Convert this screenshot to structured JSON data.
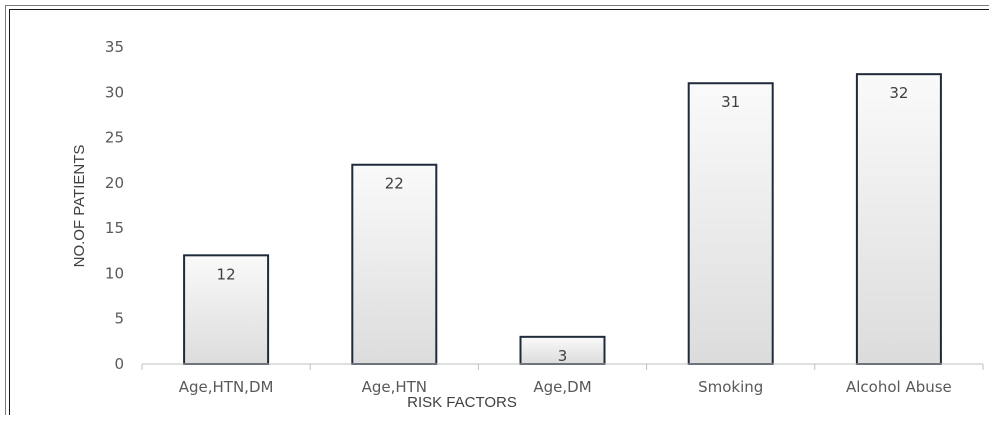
{
  "chart_data": {
    "type": "bar",
    "title": "",
    "xlabel": "RISK FACTORS",
    "ylabel": "NO.OF PATIENTS",
    "categories": [
      "Age,HTN,DM",
      "Age,HTN",
      "Age,DM",
      "Smoking",
      "Alcohol Abuse"
    ],
    "values": [
      12,
      22,
      3,
      31,
      32
    ],
    "data_labels": [
      "12",
      "22",
      "3",
      "31",
      "32"
    ],
    "ylim": [
      0,
      35
    ],
    "yticks": [
      0,
      5,
      10,
      15,
      20,
      25,
      30,
      35
    ],
    "ytick_labels": [
      "0",
      "5",
      "10",
      "15",
      "20",
      "25",
      "30",
      "35"
    ],
    "grid": false,
    "legend": "none",
    "colors": {
      "bar_fill_top": "#fafafa",
      "bar_fill_bottom": "#dcdcdc",
      "bar_stroke": "#1f2a3a",
      "axis": "#bfbfbf",
      "text": "#595959"
    }
  }
}
